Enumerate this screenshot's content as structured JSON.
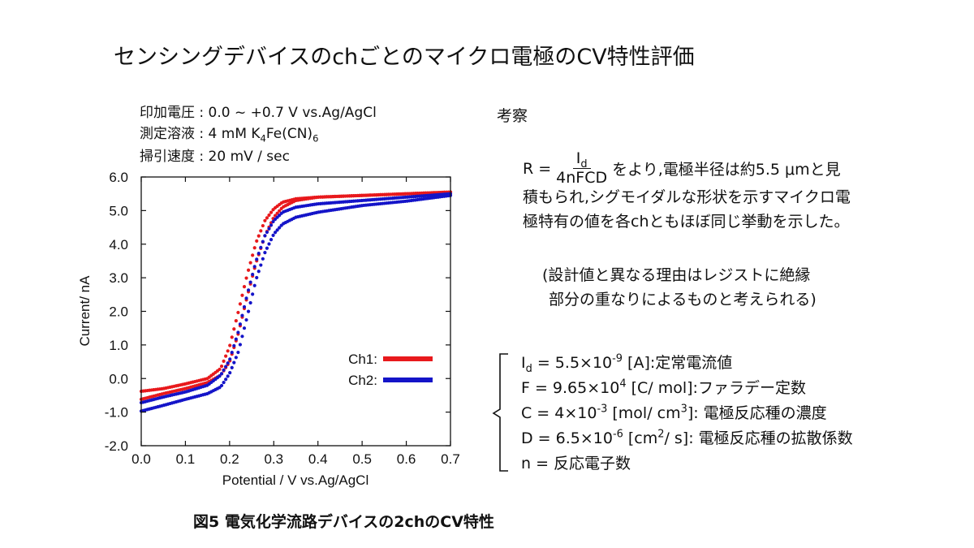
{
  "title": "センシングデバイスのchごとのマイクロ電極のCV特性評価",
  "conditions": {
    "line1": "印加電圧 : 0.0 ~ +0.7 V vs.Ag/AgCl",
    "line2_pre": "測定溶液 : 4 mM K",
    "line2_sub1": "4",
    "line2_mid": "Fe(CN)",
    "line2_sub2": "6",
    "line3": "掃引速度 : 20 mV / sec"
  },
  "caption": "図5 電気化学流路デバイスの2chのCV特性",
  "discussion": {
    "heading": "考察",
    "eq_lhs": "R = ",
    "eq_num": "I",
    "eq_num_sub": "d",
    "eq_den": "4nFCD",
    "line1_rest": "をより,電極半径は約5.5 μmと見",
    "line2": "積もられ,シグモイダルな形状を示すマイクロ電",
    "line3": "極特有の値を各chともほぼ同じ挙動を示した。",
    "note1": "(設計値と異なる理由はレジストに絶縁",
    "note2": "部分の重なりによるものと考えられる)"
  },
  "definitions": {
    "d1_a": "I",
    "d1_sub": "d",
    "d1_b": " = 5.5×10",
    "d1_sup": "-9",
    "d1_c": " [A]:定常電流値",
    "d2_a": "F = 9.65×10",
    "d2_sup": "4",
    "d2_b": " [C/ mol]:ファラデー定数",
    "d3_a": "C = 4×10",
    "d3_sup1": "-3",
    "d3_b": " [mol/ cm",
    "d3_sup2": "3",
    "d3_c": "]: 電極反応種の濃度",
    "d4_a": "D = 6.5×10",
    "d4_sup1": "-6",
    "d4_b": " [cm",
    "d4_sup2": "2",
    "d4_c": "/ s]: 電極反応種の拡散係数",
    "d5": "n = 反応電子数"
  },
  "chart_data": {
    "type": "scatter",
    "xlabel": "Potential / V vs.Ag/AgCl",
    "ylabel": "Current/ nA",
    "xlim": [
      0.0,
      0.7
    ],
    "ylim": [
      -2.0,
      6.0
    ],
    "xticks": [
      "0.0",
      "0.1",
      "0.2",
      "0.3",
      "0.4",
      "0.5",
      "0.6",
      "0.7"
    ],
    "yticks": [
      "6.0",
      "5.0",
      "4.0",
      "3.0",
      "2.0",
      "1.0",
      "0.0",
      "-1.0",
      "-2.0"
    ],
    "grid": false,
    "legend_position": "lower-right",
    "series": [
      {
        "name": "Ch1:",
        "color": "#e8191c",
        "curves": [
          [
            [
              0.0,
              -0.38
            ],
            [
              0.05,
              -0.3
            ],
            [
              0.1,
              -0.16
            ],
            [
              0.15,
              0.0
            ],
            [
              0.18,
              0.3
            ],
            [
              0.2,
              0.95
            ],
            [
              0.22,
              2.0
            ],
            [
              0.24,
              3.1
            ],
            [
              0.26,
              4.05
            ],
            [
              0.28,
              4.7
            ],
            [
              0.3,
              5.05
            ],
            [
              0.32,
              5.25
            ],
            [
              0.35,
              5.35
            ],
            [
              0.4,
              5.4
            ],
            [
              0.5,
              5.45
            ],
            [
              0.6,
              5.5
            ],
            [
              0.7,
              5.55
            ]
          ],
          [
            [
              0.0,
              -0.62
            ],
            [
              0.05,
              -0.45
            ],
            [
              0.1,
              -0.3
            ],
            [
              0.15,
              -0.12
            ],
            [
              0.18,
              0.1
            ],
            [
              0.2,
              0.5
            ],
            [
              0.22,
              1.35
            ],
            [
              0.24,
              2.45
            ],
            [
              0.26,
              3.45
            ],
            [
              0.28,
              4.25
            ],
            [
              0.3,
              4.8
            ],
            [
              0.32,
              5.1
            ],
            [
              0.35,
              5.3
            ],
            [
              0.4,
              5.4
            ],
            [
              0.5,
              5.45
            ],
            [
              0.6,
              5.5
            ],
            [
              0.7,
              5.55
            ]
          ]
        ]
      },
      {
        "name": "Ch2:",
        "color": "#1414c8",
        "curves": [
          [
            [
              0.0,
              -0.72
            ],
            [
              0.05,
              -0.55
            ],
            [
              0.1,
              -0.4
            ],
            [
              0.15,
              -0.2
            ],
            [
              0.18,
              0.1
            ],
            [
              0.2,
              0.55
            ],
            [
              0.22,
              1.4
            ],
            [
              0.24,
              2.5
            ],
            [
              0.26,
              3.5
            ],
            [
              0.28,
              4.25
            ],
            [
              0.3,
              4.7
            ],
            [
              0.32,
              4.95
            ],
            [
              0.35,
              5.1
            ],
            [
              0.4,
              5.2
            ],
            [
              0.5,
              5.3
            ],
            [
              0.6,
              5.4
            ],
            [
              0.7,
              5.5
            ]
          ],
          [
            [
              0.0,
              -0.97
            ],
            [
              0.05,
              -0.8
            ],
            [
              0.1,
              -0.62
            ],
            [
              0.15,
              -0.45
            ],
            [
              0.18,
              -0.25
            ],
            [
              0.2,
              0.15
            ],
            [
              0.22,
              0.8
            ],
            [
              0.24,
              1.85
            ],
            [
              0.26,
              2.95
            ],
            [
              0.28,
              3.75
            ],
            [
              0.3,
              4.3
            ],
            [
              0.32,
              4.6
            ],
            [
              0.35,
              4.8
            ],
            [
              0.4,
              4.95
            ],
            [
              0.45,
              5.05
            ],
            [
              0.5,
              5.15
            ],
            [
              0.6,
              5.28
            ],
            [
              0.7,
              5.45
            ]
          ]
        ]
      }
    ]
  }
}
